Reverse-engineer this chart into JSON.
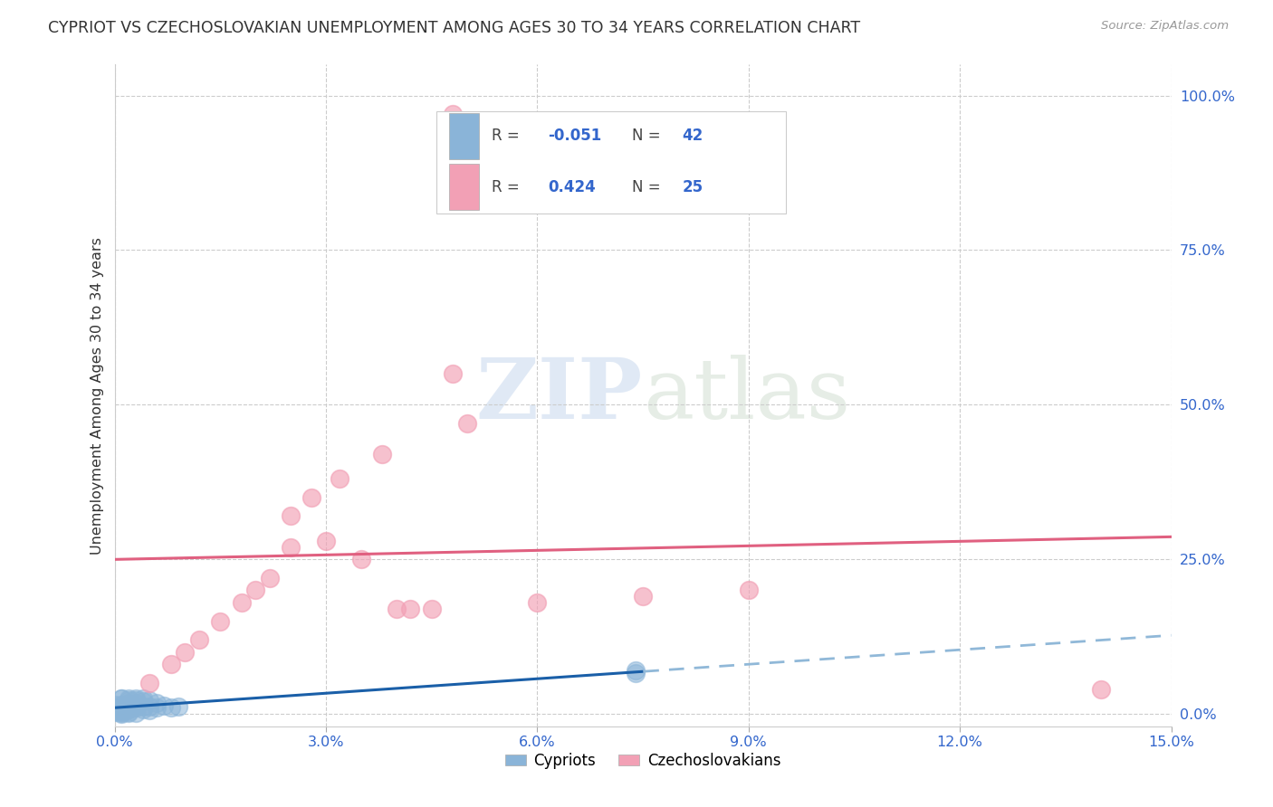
{
  "title": "CYPRIOT VS CZECHOSLOVAKIAN UNEMPLOYMENT AMONG AGES 30 TO 34 YEARS CORRELATION CHART",
  "source": "Source: ZipAtlas.com",
  "ylabel": "Unemployment Among Ages 30 to 34 years",
  "xlim": [
    0.0,
    0.15
  ],
  "ylim": [
    -0.02,
    1.05
  ],
  "x_ticks": [
    0.0,
    0.03,
    0.06,
    0.09,
    0.12,
    0.15
  ],
  "x_tick_labels": [
    "0.0%",
    "3.0%",
    "6.0%",
    "9.0%",
    "12.0%",
    "15.0%"
  ],
  "y_ticks_right": [
    0.0,
    0.25,
    0.5,
    0.75,
    1.0
  ],
  "y_tick_labels_right": [
    "0.0%",
    "25.0%",
    "50.0%",
    "75.0%",
    "100.0%"
  ],
  "watermark_zip": "ZIP",
  "watermark_atlas": "atlas",
  "cypriot_color": "#8ab4d8",
  "czechoslovakian_color": "#f2a0b5",
  "cypriot_R": -0.051,
  "cypriot_N": 42,
  "czechoslovakian_R": 0.424,
  "czechoslovakian_N": 25,
  "cypriot_x": [
    0.001,
    0.001,
    0.001,
    0.002,
    0.002,
    0.002,
    0.002,
    0.003,
    0.003,
    0.003,
    0.003,
    0.004,
    0.004,
    0.004,
    0.005,
    0.005,
    0.005,
    0.006,
    0.006,
    0.007,
    0.008,
    0.009,
    0.001,
    0.002,
    0.003,
    0.004,
    0.001,
    0.002,
    0.0,
    0.0,
    0.0,
    0.001,
    0.001,
    0.002,
    0.003,
    0.001,
    0.002,
    0.001,
    0.0,
    0.001,
    0.074,
    0.074
  ],
  "cypriot_y": [
    0.01,
    0.015,
    0.005,
    0.008,
    0.012,
    0.018,
    0.022,
    0.01,
    0.014,
    0.018,
    0.022,
    0.008,
    0.012,
    0.02,
    0.006,
    0.012,
    0.022,
    0.01,
    0.018,
    0.014,
    0.01,
    0.012,
    0.025,
    0.025,
    0.025,
    0.025,
    0.003,
    0.003,
    0.005,
    0.01,
    0.015,
    0.0,
    0.002,
    0.002,
    0.002,
    0.008,
    0.008,
    0.005,
    0.003,
    0.025,
    0.066,
    0.07
  ],
  "czechoslovakian_x": [
    0.005,
    0.008,
    0.01,
    0.012,
    0.015,
    0.018,
    0.02,
    0.022,
    0.025,
    0.025,
    0.028,
    0.03,
    0.032,
    0.035,
    0.038,
    0.04,
    0.042,
    0.045,
    0.048,
    0.05,
    0.06,
    0.075,
    0.09,
    0.14,
    0.048
  ],
  "czechoslovakian_y": [
    0.05,
    0.08,
    0.1,
    0.12,
    0.15,
    0.18,
    0.2,
    0.22,
    0.27,
    0.32,
    0.35,
    0.28,
    0.38,
    0.25,
    0.42,
    0.17,
    0.17,
    0.17,
    0.55,
    0.47,
    0.18,
    0.19,
    0.2,
    0.04,
    0.97
  ],
  "cypriot_line_color": "#1a5fa8",
  "cypriot_line_dashed_color": "#90b8d8",
  "czechoslovakian_line_color": "#e06080",
  "grid_color": "#cccccc",
  "background_color": "#ffffff",
  "legend_color": "#3366cc",
  "text_color": "#333333"
}
